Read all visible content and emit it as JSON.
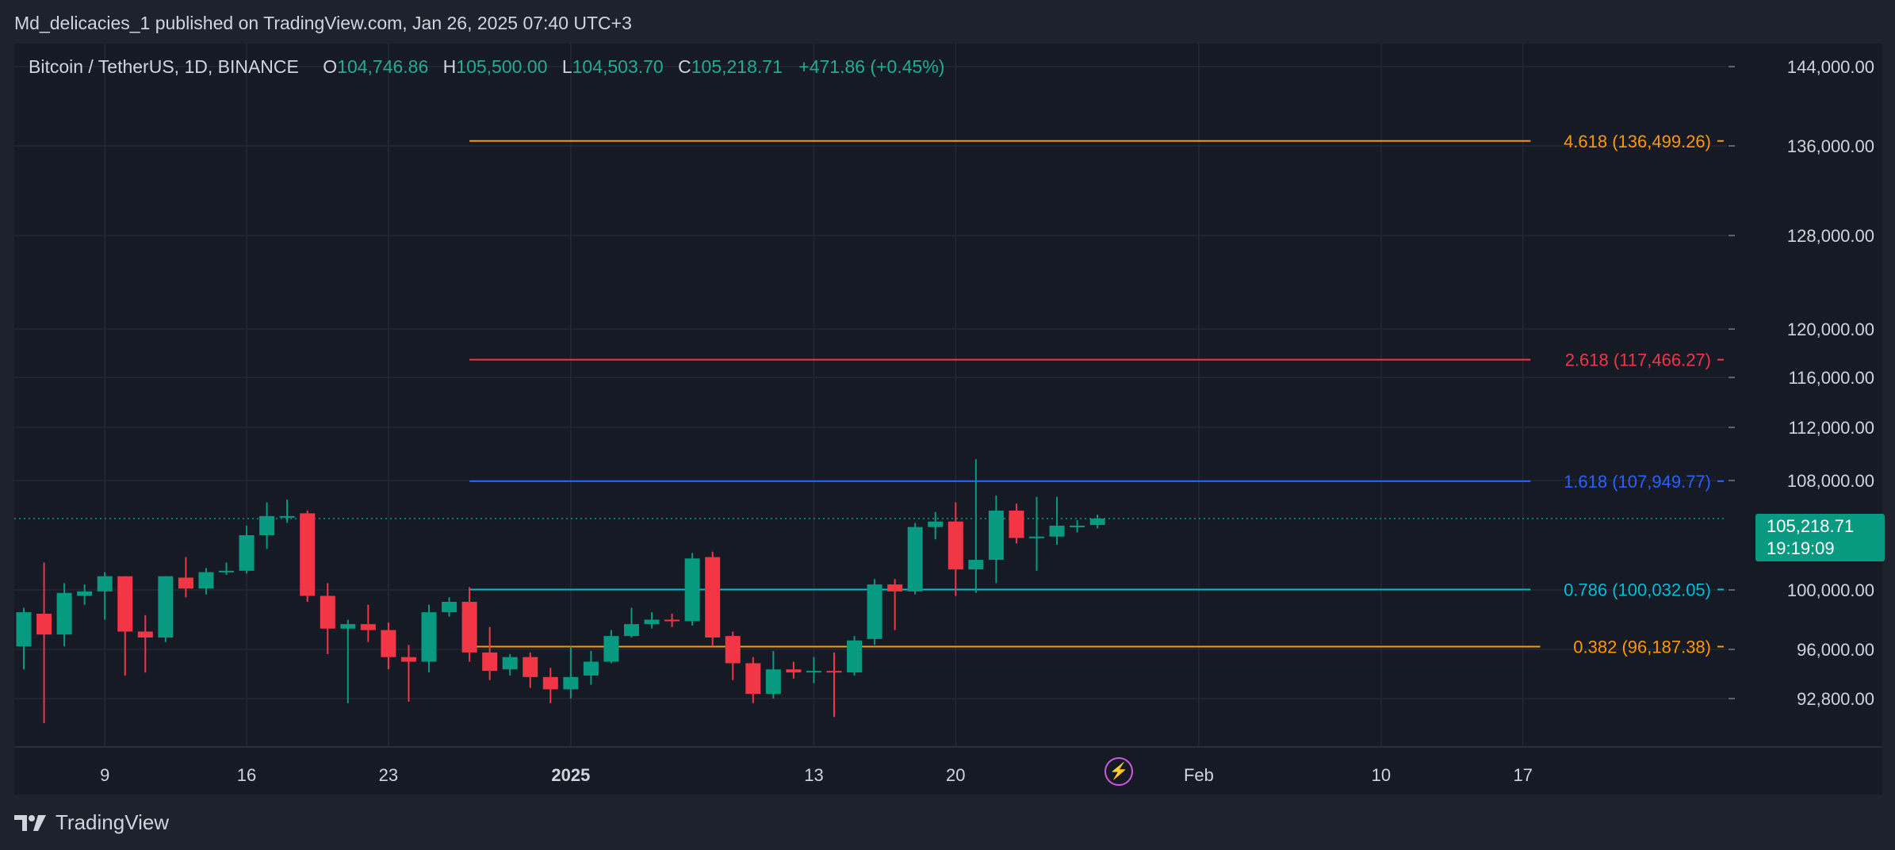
{
  "publisher": "Md_delicacies_1 published on TradingView.com, Jan 26, 2025 07:40 UTC+3",
  "legend": {
    "symbol": "Bitcoin / TetherUS, 1D, BINANCE",
    "open_label": "O",
    "open": "104,746.86",
    "high_label": "H",
    "high": "105,500.00",
    "low_label": "L",
    "low": "104,503.70",
    "close_label": "C",
    "close": "105,218.71",
    "change": "+471.86 (+0.45%)"
  },
  "price_badge": {
    "price": "105,218.71",
    "countdown": "19:19:09"
  },
  "footer": {
    "brand": "TradingView"
  },
  "icons": {
    "flash": "lightning-icon",
    "logo": "tradingview-logo-icon"
  },
  "colors": {
    "background": "#161a25",
    "up": "#089981",
    "down": "#f23645",
    "grid": "#242835",
    "text": "#d1d4dc",
    "fib_4618": "#ff9800",
    "fib_2618": "#f23645",
    "fib_1618": "#2962ff",
    "fib_0786": "#00bcd4",
    "fib_0382": "#ff9800"
  },
  "chart_data": {
    "type": "candlestick",
    "title": "Bitcoin / TetherUS, 1D, BINANCE",
    "x_start": "2024-12-05",
    "x_ticks": [
      {
        "date": "2024-12-09",
        "label": "9",
        "bold": false
      },
      {
        "date": "2024-12-16",
        "label": "16",
        "bold": false
      },
      {
        "date": "2024-12-23",
        "label": "23",
        "bold": false
      },
      {
        "date": "2025-01-01",
        "label": "2025",
        "bold": true
      },
      {
        "date": "2025-01-13",
        "label": "13",
        "bold": false
      },
      {
        "date": "2025-01-20",
        "label": "20",
        "bold": false
      },
      {
        "date": "2025-02-01",
        "label": "Feb",
        "bold": false
      },
      {
        "date": "2025-02-10",
        "label": "10",
        "bold": false
      },
      {
        "date": "2025-02-17",
        "label": "17",
        "bold": false
      }
    ],
    "y_ticks": [
      {
        "value": 144000,
        "label": "144,000.00"
      },
      {
        "value": 136000,
        "label": "136,000.00"
      },
      {
        "value": 128000,
        "label": "128,000.00"
      },
      {
        "value": 120000,
        "label": "120,000.00"
      },
      {
        "value": 116000,
        "label": "116,000.00"
      },
      {
        "value": 112000,
        "label": "112,000.00"
      },
      {
        "value": 108000,
        "label": "108,000.00"
      },
      {
        "value": 100000,
        "label": "100,000.00"
      },
      {
        "value": 96000,
        "label": "96,000.00"
      },
      {
        "value": 92800,
        "label": "92,800.00"
      }
    ],
    "current_price": 105218.71,
    "fib_levels": [
      {
        "ratio": "4.618",
        "price": 136499.26,
        "label": "4.618 (136,499.26)",
        "color": "#ff9800",
        "start": "2024-12-27"
      },
      {
        "ratio": "2.618",
        "price": 117466.27,
        "label": "2.618 (117,466.27)",
        "color": "#f23645",
        "start": "2024-12-27"
      },
      {
        "ratio": "1.618",
        "price": 107949.77,
        "label": "1.618 (107,949.77)",
        "color": "#2962ff",
        "start": "2024-12-27"
      },
      {
        "ratio": "0.786",
        "price": 100032.05,
        "label": "0.786 (100,032.05)",
        "color": "#00bcd4",
        "start": "2024-12-27"
      },
      {
        "ratio": "0.382",
        "price": 96187.38,
        "label": "0.382 (96,187.38)",
        "color": "#ff9800",
        "start": "2024-12-27"
      }
    ],
    "candles": [
      {
        "date": "2024-12-05",
        "o": 96200,
        "h": 98800,
        "l": 94700,
        "c": 98500
      },
      {
        "date": "2024-12-06",
        "o": 98400,
        "h": 102000,
        "l": 91200,
        "c": 97000
      },
      {
        "date": "2024-12-07",
        "o": 97000,
        "h": 100500,
        "l": 96200,
        "c": 99800
      },
      {
        "date": "2024-12-08",
        "o": 99600,
        "h": 100400,
        "l": 99000,
        "c": 99900
      },
      {
        "date": "2024-12-09",
        "o": 99900,
        "h": 101300,
        "l": 98000,
        "c": 101000
      },
      {
        "date": "2024-12-10",
        "o": 101000,
        "h": 101000,
        "l": 94300,
        "c": 97200
      },
      {
        "date": "2024-12-11",
        "o": 97200,
        "h": 98300,
        "l": 94500,
        "c": 96800
      },
      {
        "date": "2024-12-12",
        "o": 96800,
        "h": 101000,
        "l": 96500,
        "c": 101000
      },
      {
        "date": "2024-12-13",
        "o": 100900,
        "h": 102400,
        "l": 99500,
        "c": 100100
      },
      {
        "date": "2024-12-14",
        "o": 100100,
        "h": 101600,
        "l": 99700,
        "c": 101300
      },
      {
        "date": "2024-12-15",
        "o": 101300,
        "h": 102000,
        "l": 101100,
        "c": 101400
      },
      {
        "date": "2024-12-16",
        "o": 101400,
        "h": 104700,
        "l": 101200,
        "c": 104000
      },
      {
        "date": "2024-12-17",
        "o": 104000,
        "h": 106400,
        "l": 103000,
        "c": 105400
      },
      {
        "date": "2024-12-18",
        "o": 105400,
        "h": 106600,
        "l": 104900,
        "c": 105400
      },
      {
        "date": "2024-12-19",
        "o": 105600,
        "h": 105800,
        "l": 99200,
        "c": 99600
      },
      {
        "date": "2024-12-20",
        "o": 99600,
        "h": 100500,
        "l": 95700,
        "c": 97400
      },
      {
        "date": "2024-12-21",
        "o": 97400,
        "h": 98000,
        "l": 92500,
        "c": 97700
      },
      {
        "date": "2024-12-22",
        "o": 97700,
        "h": 99000,
        "l": 96500,
        "c": 97300
      },
      {
        "date": "2024-12-23",
        "o": 97300,
        "h": 97800,
        "l": 94700,
        "c": 95500
      },
      {
        "date": "2024-12-24",
        "o": 95500,
        "h": 96300,
        "l": 92600,
        "c": 95200
      },
      {
        "date": "2024-12-25",
        "o": 95200,
        "h": 99000,
        "l": 94500,
        "c": 98500
      },
      {
        "date": "2024-12-26",
        "o": 98500,
        "h": 99500,
        "l": 98200,
        "c": 99200
      },
      {
        "date": "2024-12-27",
        "o": 99200,
        "h": 100200,
        "l": 95200,
        "c": 95800
      },
      {
        "date": "2024-12-28",
        "o": 95800,
        "h": 97500,
        "l": 94000,
        "c": 94600
      },
      {
        "date": "2024-12-29",
        "o": 94700,
        "h": 95700,
        "l": 94300,
        "c": 95500
      },
      {
        "date": "2024-12-30",
        "o": 95500,
        "h": 95800,
        "l": 93500,
        "c": 94200
      },
      {
        "date": "2024-12-31",
        "o": 94200,
        "h": 94800,
        "l": 92500,
        "c": 93400
      },
      {
        "date": "2025-01-01",
        "o": 93400,
        "h": 96200,
        "l": 92800,
        "c": 94200
      },
      {
        "date": "2025-01-02",
        "o": 94300,
        "h": 95900,
        "l": 93700,
        "c": 95200
      },
      {
        "date": "2025-01-03",
        "o": 95200,
        "h": 97300,
        "l": 95100,
        "c": 96900
      },
      {
        "date": "2025-01-04",
        "o": 96900,
        "h": 98800,
        "l": 96800,
        "c": 97700
      },
      {
        "date": "2025-01-05",
        "o": 97700,
        "h": 98500,
        "l": 97400,
        "c": 98000
      },
      {
        "date": "2025-01-06",
        "o": 98000,
        "h": 98400,
        "l": 97500,
        "c": 97900
      },
      {
        "date": "2025-01-07",
        "o": 97900,
        "h": 102700,
        "l": 97600,
        "c": 102300
      },
      {
        "date": "2025-01-08",
        "o": 102400,
        "h": 102800,
        "l": 96200,
        "c": 96800
      },
      {
        "date": "2025-01-09",
        "o": 96900,
        "h": 97200,
        "l": 94000,
        "c": 95100
      },
      {
        "date": "2025-01-10",
        "o": 95100,
        "h": 95500,
        "l": 92500,
        "c": 93100
      },
      {
        "date": "2025-01-11",
        "o": 93100,
        "h": 95900,
        "l": 92800,
        "c": 94700
      },
      {
        "date": "2025-01-12",
        "o": 94700,
        "h": 95200,
        "l": 94100,
        "c": 94500
      },
      {
        "date": "2025-01-13",
        "o": 94500,
        "h": 95500,
        "l": 93800,
        "c": 94600
      },
      {
        "date": "2025-01-14",
        "o": 94600,
        "h": 95800,
        "l": 91600,
        "c": 94500
      },
      {
        "date": "2025-01-15",
        "o": 94500,
        "h": 96900,
        "l": 94300,
        "c": 96600
      },
      {
        "date": "2025-01-16",
        "o": 96700,
        "h": 100800,
        "l": 96300,
        "c": 100400
      },
      {
        "date": "2025-01-17",
        "o": 100400,
        "h": 100800,
        "l": 97300,
        "c": 99900
      },
      {
        "date": "2025-01-18",
        "o": 99900,
        "h": 104900,
        "l": 99700,
        "c": 104600
      },
      {
        "date": "2025-01-19",
        "o": 104600,
        "h": 105700,
        "l": 103700,
        "c": 105000
      },
      {
        "date": "2025-01-20",
        "o": 105000,
        "h": 106400,
        "l": 99600,
        "c": 101500
      },
      {
        "date": "2025-01-21",
        "o": 101500,
        "h": 109600,
        "l": 99800,
        "c": 102200
      },
      {
        "date": "2025-01-22",
        "o": 102200,
        "h": 106900,
        "l": 100500,
        "c": 105800
      },
      {
        "date": "2025-01-23",
        "o": 105800,
        "h": 106300,
        "l": 103400,
        "c": 103800
      },
      {
        "date": "2025-01-24",
        "o": 103800,
        "h": 106800,
        "l": 101400,
        "c": 103900
      },
      {
        "date": "2025-01-25",
        "o": 103900,
        "h": 106800,
        "l": 103300,
        "c": 104700
      },
      {
        "date": "2025-01-26",
        "o": 104700,
        "h": 105100,
        "l": 104200,
        "c": 104700
      },
      {
        "date": "2025-01-27",
        "o": 104746.86,
        "h": 105500,
        "l": 104503.7,
        "c": 105218.71
      }
    ]
  }
}
